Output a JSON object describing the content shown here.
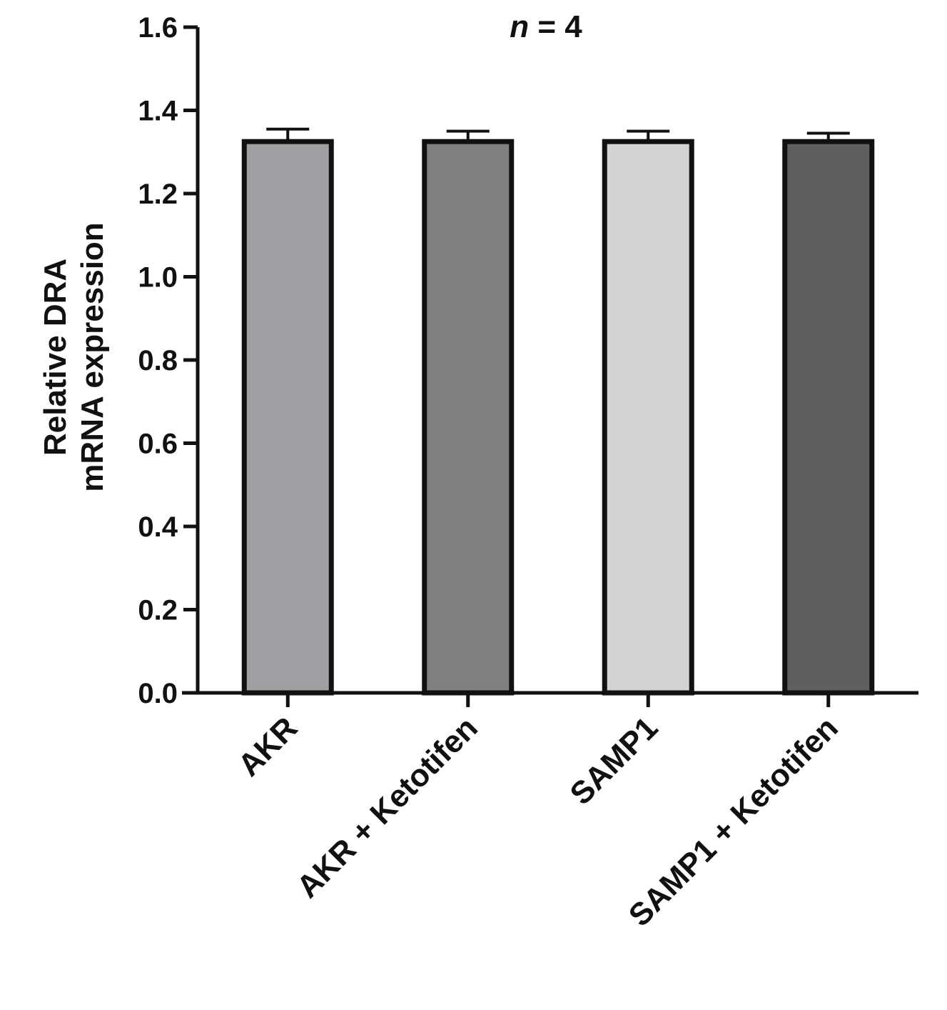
{
  "chart_data": {
    "type": "bar",
    "title_n": "n",
    "title_rest": " = 4",
    "ylabel_lines": [
      "Relative DRA",
      "mRNA expression"
    ],
    "xlabel": "",
    "ylim": [
      0,
      1.6
    ],
    "y_ticks": [
      "0.0",
      "0.2",
      "0.4",
      "0.6",
      "0.8",
      "1.0",
      "1.2",
      "1.4",
      "1.6"
    ],
    "categories": [
      "AKR",
      "AKR + Ketotifen",
      "SAMP1",
      "SAMP1 + Ketotifen"
    ],
    "values": [
      1.325,
      1.325,
      1.325,
      1.325
    ],
    "errors": [
      0.03,
      0.025,
      0.025,
      0.02
    ],
    "bar_colors": [
      "#a0a0a4",
      "#808080",
      "#d3d3d3",
      "#5f5f5f"
    ],
    "grid": false
  }
}
